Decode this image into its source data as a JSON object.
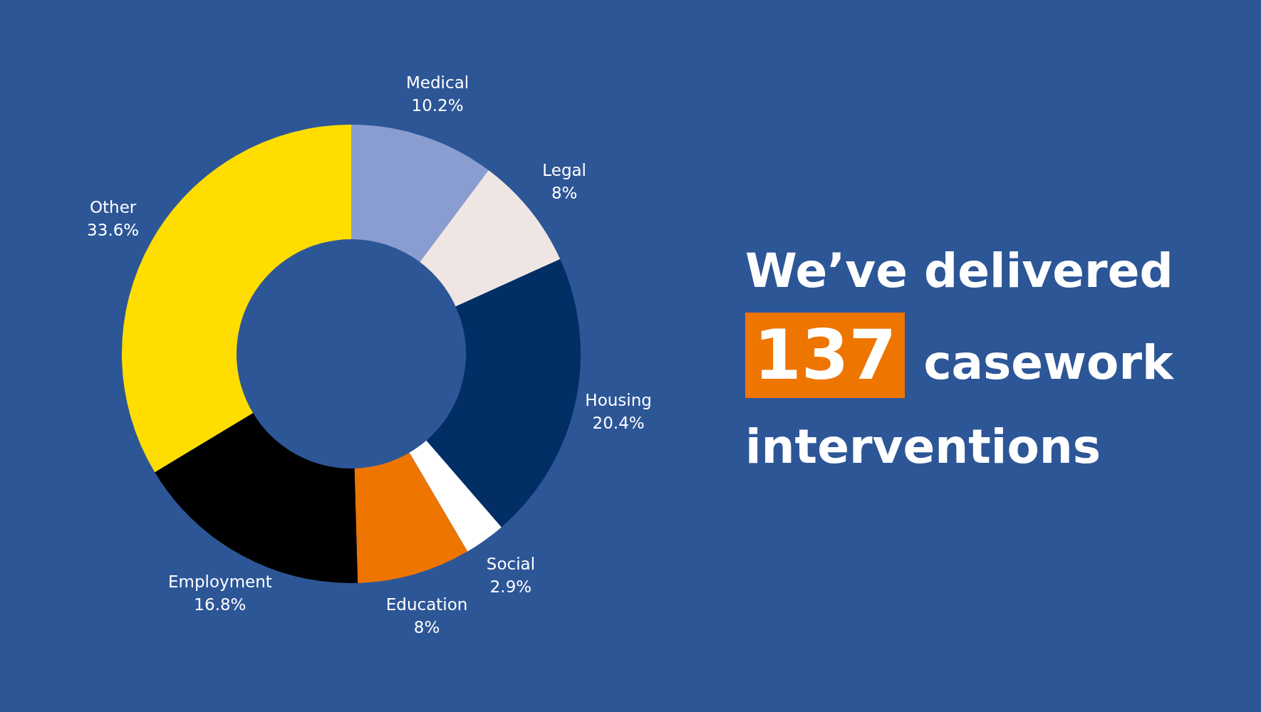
{
  "chart_data": {
    "type": "donut",
    "categories": [
      "Medical",
      "Legal",
      "Housing",
      "Social",
      "Education",
      "Employment",
      "Other"
    ],
    "values": [
      10.2,
      8,
      20.4,
      2.9,
      8,
      16.8,
      33.6
    ],
    "value_labels": [
      "10.2%",
      "8%",
      "20.4%",
      "2.9%",
      "8%",
      "16.8%",
      "33.6%"
    ],
    "colors": [
      "#8a9dd0",
      "#efe6e4",
      "#022e66",
      "#ffffff",
      "#ee7500",
      "#000000",
      "#ffdd00"
    ],
    "legend": false,
    "annotations": [
      "We’ve delivered",
      "137",
      "casework",
      "interventions"
    ]
  }
}
